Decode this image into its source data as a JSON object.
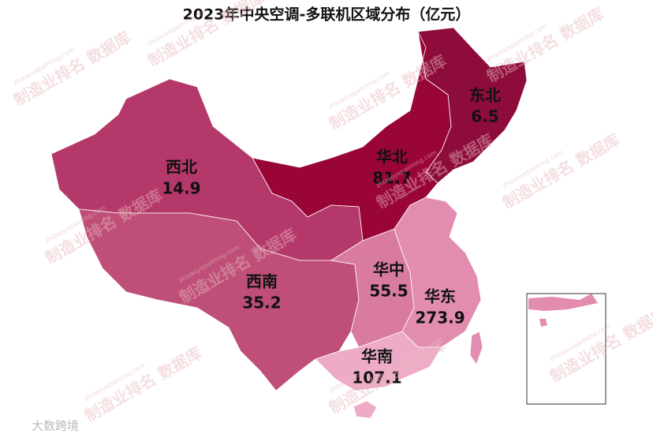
{
  "chart_data": {
    "type": "choropleth-map",
    "title": "2023年中央空调-多联机区域分布（亿元）",
    "regions": [
      {
        "name": "东北",
        "value": 6.5,
        "color": "#8e0c3c"
      },
      {
        "name": "华北",
        "value": 81.7,
        "color": "#9a0538"
      },
      {
        "name": "西北",
        "value": 14.9,
        "color": "#b5386a"
      },
      {
        "name": "西南",
        "value": 35.2,
        "color": "#bf4f78"
      },
      {
        "name": "华中",
        "value": 55.5,
        "color": "#d97ba1"
      },
      {
        "name": "华东",
        "value": 273.9,
        "color": "#e28db0"
      },
      {
        "name": "华南",
        "value": 107.1,
        "color": "#eeabc7"
      }
    ],
    "watermark": "制造业排名 数据库",
    "watermark_url": "zhizaoyepaiming.com",
    "source_logo": "大数跨境"
  }
}
